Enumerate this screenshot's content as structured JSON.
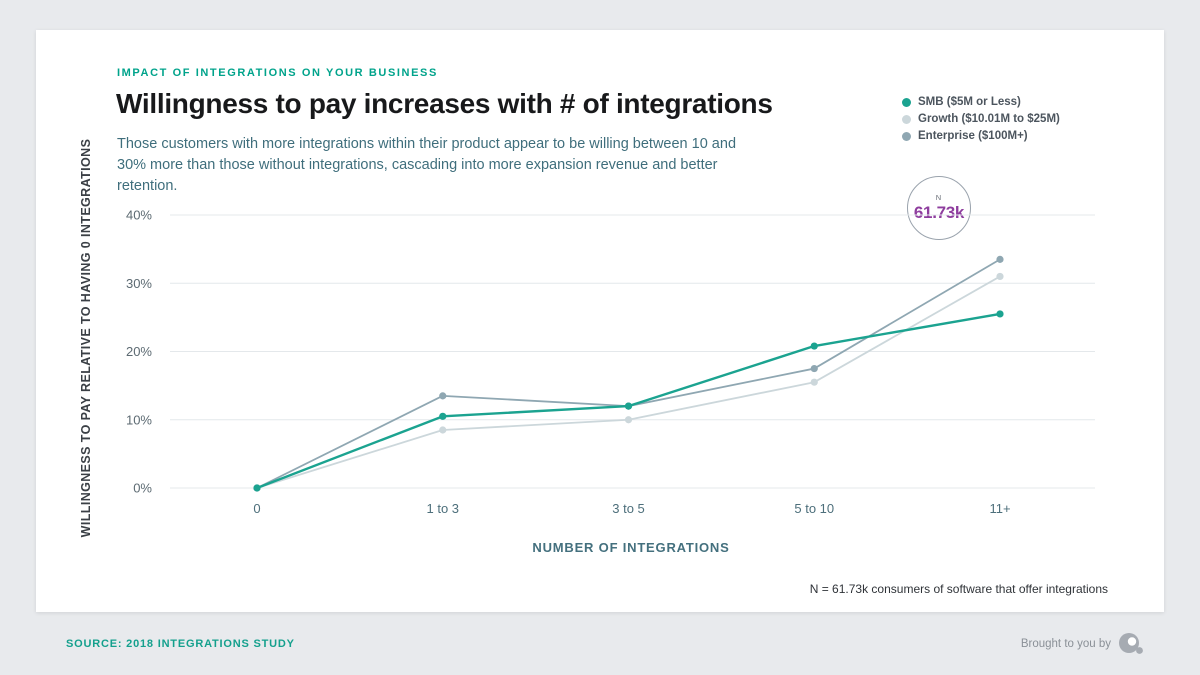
{
  "page": {
    "eyebrow": "IMPACT OF INTEGRATIONS ON YOUR BUSINESS",
    "title": "Willingness to pay increases with # of integrations",
    "subtitle": "Those customers with more integrations within their product appear to be willing between 10 and 30% more than those without integrations, cascading into more expansion revenue and better retention.",
    "n_badge": {
      "label": "N",
      "value": "61.73k"
    },
    "note": "N = 61.73k consumers of software that offer integrations",
    "footer": {
      "source": "SOURCE: 2018 INTEGRATIONS STUDY",
      "brought_to_you_by": "Brought to you by"
    }
  },
  "colors": {
    "accent_teal": "#00a38b",
    "badge_value_purple": "#8e3d9e",
    "grid": "#e4e8eb",
    "tick_text": "#5c6a72",
    "category_text": "#4d6f7b"
  },
  "chart_data": {
    "type": "line",
    "categories": [
      "0",
      "1 to 3",
      "3 to 5",
      "5 to 10",
      "11+"
    ],
    "series": [
      {
        "name": "SMB ($5M or Less)",
        "color": "#1ba390",
        "values": [
          0,
          10.5,
          12,
          20.8,
          25.5
        ]
      },
      {
        "name": "Growth ($10.01M to $25M)",
        "color": "#ccd7db",
        "values": [
          0,
          8.5,
          10,
          15.5,
          31
        ]
      },
      {
        "name": "Enterprise ($100M+)",
        "color": "#8fa7b2",
        "values": [
          0,
          13.5,
          12,
          17.5,
          33.5
        ]
      }
    ],
    "xlabel": "NUMBER OF INTEGRATIONS",
    "ylabel": "WILLINGNESS TO PAY RELATIVE TO HAVING 0 INTEGRATIONS",
    "ylim": [
      0,
      40
    ],
    "yticks": [
      0,
      10,
      20,
      30,
      40
    ],
    "ytick_suffix": "%",
    "grid": true,
    "legend_position": "top-right",
    "sample_size": "61.73k"
  }
}
